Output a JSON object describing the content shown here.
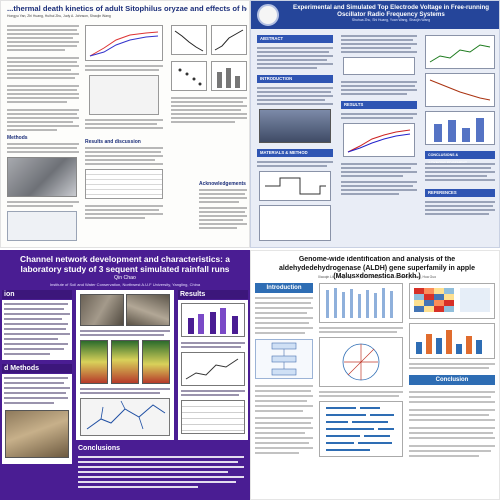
{
  "poster1": {
    "title": "...thermal death kinetics of adult Sitophilus oryzae and effects of heating rate on thermotole",
    "authors": "Hongyu Yan, Zhi Huang, Huihui Zhu, Judy A. Johnson, Shaojin Wang",
    "results_heading": "Results and discussion",
    "methods_heading": "Methods",
    "ack_heading": "Acknowledgements"
  },
  "poster2": {
    "title": "Experimental and Simulated Top Electrode Voltage in Free-running Oscillator Radio Frequency Systems",
    "authors": "Shuhua Zhu, Shi Huang, Yuan Wang, Shaojin Wang",
    "sections": {
      "abstract": "ABSTRACT",
      "introduction": "INTRODUCTION",
      "materials": "MATERIALS & METHOD",
      "results": "RESULTS",
      "conclusions": "CONCLUSIONS & ACKNOWLEDGEMENT",
      "references": "REFERENCES"
    }
  },
  "poster3": {
    "title": "Channel network development and characteristics: a laboratory study of 3 sequent simulated rainfall runs",
    "author": "Qin Chao",
    "affiliation": "Institute of Soil and Water Conservation, Northwest A.U.F University, Yangling, China",
    "sections": {
      "introduction": "ion",
      "methods": "d Methods",
      "results": "Results",
      "conclusions": "Conclusions"
    }
  },
  "poster4": {
    "title": "Genome-wide identification and analysis of the aldehydedehydrogenase (ALDH) gene superfamily in apple (Malus×domestica Borkh.)",
    "authors": "Xiaoqin Liu, Rongrong Guo, Zhi Li, Wenjie Ji, Yan Li, Zhefeng Zhang, Hua Guo",
    "sections": {
      "introduction": "Introduction",
      "conclusion": "Conclusion"
    }
  }
}
